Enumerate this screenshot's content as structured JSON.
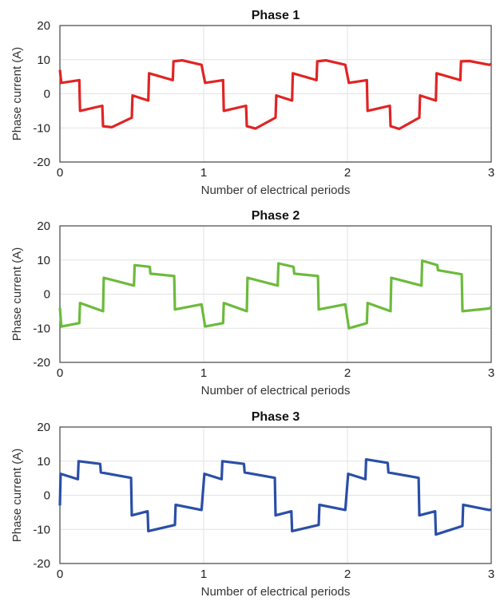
{
  "chart_data": [
    {
      "type": "line",
      "title": "Phase 1",
      "xlabel": "Number of electrical periods",
      "ylabel": "Phase current (A)",
      "xlim": [
        0,
        3
      ],
      "ylim": [
        -20,
        20
      ],
      "xticks": [
        "0",
        "1",
        "2",
        "3"
      ],
      "yticks": [
        "20",
        "10",
        "0",
        "-10",
        "-20"
      ],
      "grid": true,
      "color": "#e02424",
      "points": [
        [
          0,
          7
        ],
        [
          0.01,
          3.2
        ],
        [
          0.135,
          4
        ],
        [
          0.14,
          -5
        ],
        [
          0.295,
          -3.5
        ],
        [
          0.3,
          -9.5
        ],
        [
          0.36,
          -9.8
        ],
        [
          0.5,
          -7
        ],
        [
          0.505,
          -0.5
        ],
        [
          0.615,
          -2
        ],
        [
          0.62,
          6
        ],
        [
          0.785,
          4
        ],
        [
          0.79,
          9.5
        ],
        [
          0.85,
          9.8
        ],
        [
          0.985,
          8.5
        ],
        [
          1.01,
          3.2
        ],
        [
          1.135,
          4
        ],
        [
          1.14,
          -5
        ],
        [
          1.295,
          -3.5
        ],
        [
          1.3,
          -9.5
        ],
        [
          1.36,
          -10.2
        ],
        [
          1.5,
          -7
        ],
        [
          1.505,
          -0.5
        ],
        [
          1.615,
          -2
        ],
        [
          1.62,
          6
        ],
        [
          1.785,
          4
        ],
        [
          1.79,
          9.5
        ],
        [
          1.85,
          9.8
        ],
        [
          1.985,
          8.5
        ],
        [
          2.01,
          3.2
        ],
        [
          2.135,
          4
        ],
        [
          2.14,
          -5
        ],
        [
          2.295,
          -3.5
        ],
        [
          2.3,
          -9.5
        ],
        [
          2.36,
          -10.3
        ],
        [
          2.5,
          -7
        ],
        [
          2.505,
          -0.5
        ],
        [
          2.615,
          -2
        ],
        [
          2.62,
          6
        ],
        [
          2.785,
          4
        ],
        [
          2.79,
          9.5
        ],
        [
          2.85,
          9.6
        ],
        [
          2.985,
          8.5
        ],
        [
          3,
          8.7
        ]
      ]
    },
    {
      "type": "line",
      "title": "Phase 2",
      "xlabel": "Number of electrical periods",
      "ylabel": "Phase current (A)",
      "xlim": [
        0,
        3
      ],
      "ylim": [
        -20,
        20
      ],
      "xticks": [
        "0",
        "1",
        "2",
        "3"
      ],
      "yticks": [
        "20",
        "10",
        "0",
        "-10",
        "-20"
      ],
      "grid": true,
      "color": "#6cbb3c",
      "points": [
        [
          0,
          -4
        ],
        [
          0.01,
          -9.5
        ],
        [
          0.135,
          -8.5
        ],
        [
          0.14,
          -2.6
        ],
        [
          0.3,
          -5
        ],
        [
          0.305,
          4.8
        ],
        [
          0.515,
          2.5
        ],
        [
          0.52,
          8.5
        ],
        [
          0.625,
          8
        ],
        [
          0.63,
          6
        ],
        [
          0.795,
          5.3
        ],
        [
          0.8,
          -4.5
        ],
        [
          0.985,
          -3
        ],
        [
          1.01,
          -9.5
        ],
        [
          1.135,
          -8.5
        ],
        [
          1.14,
          -2.6
        ],
        [
          1.3,
          -5
        ],
        [
          1.305,
          4.8
        ],
        [
          1.515,
          2.5
        ],
        [
          1.52,
          9
        ],
        [
          1.625,
          8
        ],
        [
          1.63,
          6
        ],
        [
          1.795,
          5.3
        ],
        [
          1.8,
          -4.5
        ],
        [
          1.985,
          -3
        ],
        [
          2.01,
          -10
        ],
        [
          2.135,
          -8.5
        ],
        [
          2.14,
          -2.6
        ],
        [
          2.3,
          -5
        ],
        [
          2.305,
          4.8
        ],
        [
          2.515,
          2.5
        ],
        [
          2.52,
          9.8
        ],
        [
          2.625,
          8.5
        ],
        [
          2.63,
          7
        ],
        [
          2.795,
          5.8
        ],
        [
          2.8,
          -5
        ],
        [
          2.985,
          -4.2
        ],
        [
          3,
          -3.8
        ]
      ]
    },
    {
      "type": "line",
      "title": "Phase 3",
      "xlabel": "Number of electrical periods",
      "ylabel": "Phase current (A)",
      "xlim": [
        0,
        3
      ],
      "ylim": [
        -20,
        20
      ],
      "xticks": [
        "0",
        "1",
        "2",
        "3"
      ],
      "yticks": [
        "20",
        "10",
        "0",
        "-10",
        "-20"
      ],
      "grid": true,
      "color": "#2a4fa8",
      "points": [
        [
          0,
          -3
        ],
        [
          0.005,
          6.3
        ],
        [
          0.125,
          4.7
        ],
        [
          0.13,
          10
        ],
        [
          0.28,
          9.2
        ],
        [
          0.285,
          6.7
        ],
        [
          0.495,
          5.1
        ],
        [
          0.5,
          -5.9
        ],
        [
          0.61,
          -4.7
        ],
        [
          0.615,
          -10.5
        ],
        [
          0.8,
          -8.7
        ],
        [
          0.805,
          -2.8
        ],
        [
          0.985,
          -4.3
        ],
        [
          1.005,
          6.3
        ],
        [
          1.125,
          4.7
        ],
        [
          1.13,
          10
        ],
        [
          1.28,
          9.2
        ],
        [
          1.285,
          6.7
        ],
        [
          1.495,
          5.1
        ],
        [
          1.5,
          -5.9
        ],
        [
          1.61,
          -4.7
        ],
        [
          1.615,
          -10.5
        ],
        [
          1.8,
          -8.7
        ],
        [
          1.805,
          -2.8
        ],
        [
          1.985,
          -4.3
        ],
        [
          2.005,
          6.3
        ],
        [
          2.125,
          4.7
        ],
        [
          2.13,
          10.5
        ],
        [
          2.28,
          9.5
        ],
        [
          2.285,
          6.7
        ],
        [
          2.495,
          5.1
        ],
        [
          2.5,
          -5.9
        ],
        [
          2.61,
          -4.7
        ],
        [
          2.615,
          -11.5
        ],
        [
          2.8,
          -9
        ],
        [
          2.805,
          -2.8
        ],
        [
          2.985,
          -4.3
        ],
        [
          3,
          -4.2
        ]
      ]
    }
  ]
}
